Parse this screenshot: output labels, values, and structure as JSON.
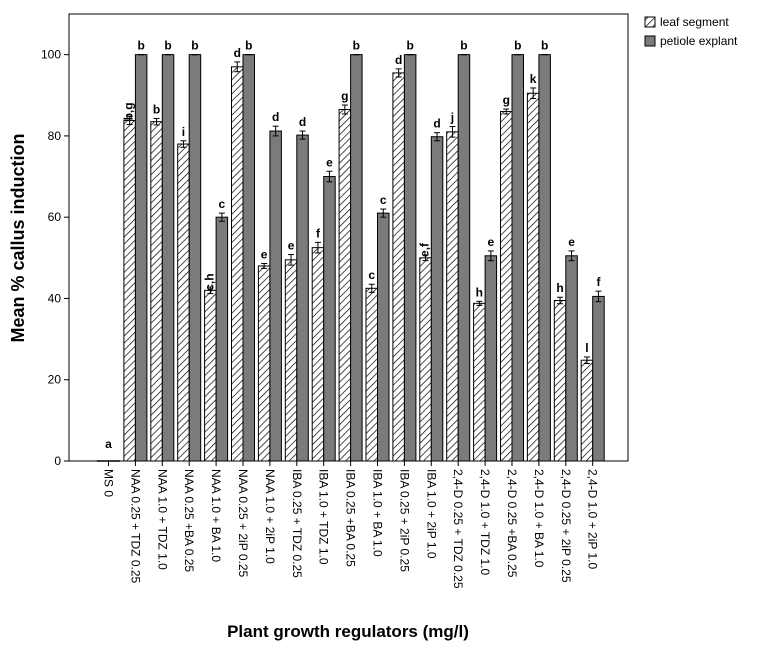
{
  "chart_data": {
    "type": "bar",
    "xlabel": "Plant growth regulators  (mg/l)",
    "ylabel": "Mean % callus induction",
    "ylim": [
      0,
      110
    ],
    "yticks": [
      0,
      20,
      40,
      60,
      80,
      100
    ],
    "grid": false,
    "legend_position": "top-right",
    "categories": [
      "MS 0",
      "NAA 0.25 + TDZ 0.25",
      "NAA 1.0 + TDZ 1.0",
      "NAA 0.25 +BA 0.25",
      "NAA 1.0 + BA 1.0",
      "NAA 0.25 + 2iP 0.25",
      "NAA 1.0 + 2iP 1.0",
      "IBA 0.25 + TDZ 0.25",
      "IBA 1.0 + TDZ 1.0",
      "IBA 0.25 +BA 0.25",
      "IBA 1.0 + BA 1.0",
      "IBA 0.25 + 2iP 0.25",
      "IBA 1.0 + 2iP 1.0",
      "2,4-D 0.25 + TDZ 0.25",
      "2,4-D 1.0 + TDZ 1.0",
      "2,4-D 0.25 +BA 0.25",
      "2,4-D 1.0 + BA 1.0",
      "2,4-D 0.25 + 2iP 0.25",
      "2,4-D 1.0 + 2iP 1.0"
    ],
    "series": [
      {
        "name": "leaf segment",
        "pattern": "hatch",
        "values": [
          0,
          83.8,
          83.5,
          78,
          42,
          97,
          48,
          49.5,
          52.5,
          86.5,
          42.5,
          95.5,
          50,
          81,
          38.8,
          86,
          90.5,
          39.5,
          24.8
        ],
        "errors": [
          0,
          1.0,
          0.8,
          0.8,
          0.8,
          1.2,
          0.6,
          1.3,
          1.3,
          1.1,
          1.0,
          1.0,
          0.7,
          1.3,
          0.5,
          0.6,
          1.3,
          0.8,
          0.8
        ],
        "labels": [
          "a",
          "b,g",
          "b",
          "i",
          "c,h",
          "d",
          "e",
          "e",
          "f",
          "g",
          "c",
          "d",
          "e,f",
          "j",
          "h",
          "g",
          "k",
          "h",
          "l"
        ]
      },
      {
        "name": "petiole explant",
        "color": "#7b7b7b",
        "values": [
          0,
          100,
          100,
          100,
          60,
          100,
          81.2,
          80.2,
          70,
          100,
          61,
          100,
          79.8,
          100,
          50.5,
          100,
          100,
          50.5,
          40.5
        ],
        "errors": [
          0,
          0,
          0,
          0,
          1.0,
          0,
          1.2,
          1.0,
          1.3,
          0,
          1.0,
          0,
          1.0,
          0,
          1.2,
          0,
          0,
          1.2,
          1.3
        ],
        "labels": [
          "",
          "b",
          "b",
          "b",
          "c",
          "b",
          "d",
          "d",
          "e",
          "b",
          "c",
          "b",
          "d",
          "b",
          "e",
          "b",
          "b",
          "e",
          "f"
        ]
      }
    ]
  }
}
